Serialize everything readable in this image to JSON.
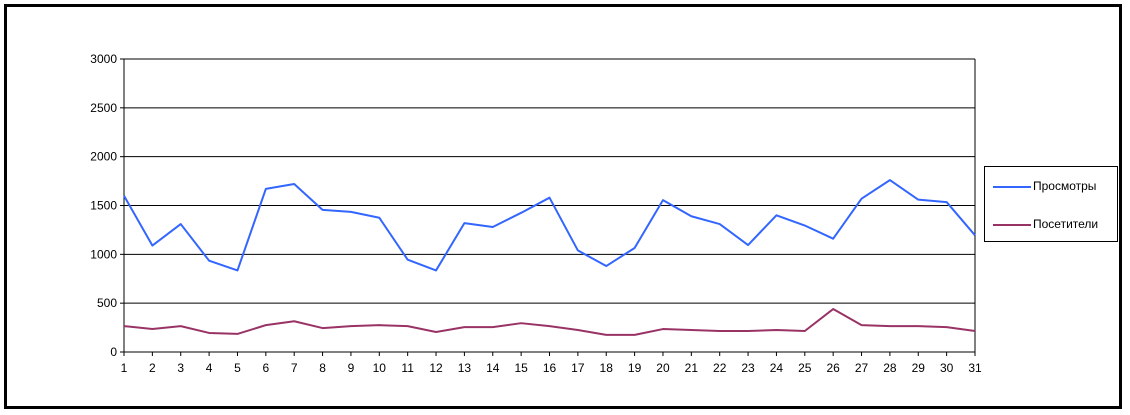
{
  "chart_data": {
    "type": "line",
    "title": "",
    "xlabel": "",
    "ylabel": "",
    "x": [
      1,
      2,
      3,
      4,
      5,
      6,
      7,
      8,
      9,
      10,
      11,
      12,
      13,
      14,
      15,
      16,
      17,
      18,
      19,
      20,
      21,
      22,
      23,
      24,
      25,
      26,
      27,
      28,
      29,
      30,
      31
    ],
    "ylim": [
      0,
      3000
    ],
    "yticks": [
      0,
      500,
      1000,
      1500,
      2000,
      2500,
      3000
    ],
    "grid": true,
    "legend_position": "right",
    "series": [
      {
        "name": "Просмотры",
        "color": "#3366ff",
        "values": [
          1600,
          1090,
          1310,
          935,
          835,
          1670,
          1720,
          1455,
          1435,
          1375,
          945,
          835,
          1320,
          1280,
          1425,
          1580,
          1040,
          880,
          1065,
          1555,
          1390,
          1310,
          1095,
          1400,
          1295,
          1160,
          1570,
          1760,
          1560,
          1535,
          1195
        ]
      },
      {
        "name": "Посетители",
        "color": "#993366",
        "values": [
          265,
          235,
          265,
          195,
          185,
          275,
          315,
          245,
          265,
          275,
          265,
          205,
          255,
          255,
          295,
          265,
          225,
          175,
          175,
          235,
          225,
          215,
          215,
          225,
          215,
          440,
          275,
          265,
          265,
          255,
          215
        ]
      }
    ]
  }
}
